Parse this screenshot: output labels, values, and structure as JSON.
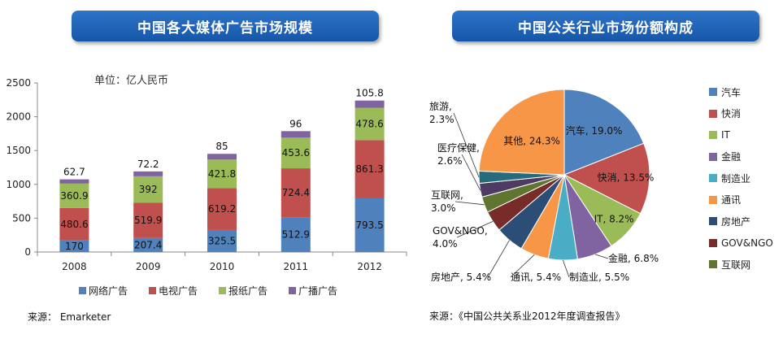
{
  "left_title": "中国各大媒体广告市场规模",
  "right_title": "中国公关行业市场份额构成",
  "left_source": "来源：   Emarketer",
  "right_source": "来源：《中国公共关系业2012年度调查报告》",
  "colors": {
    "banner": "#1c5fb0",
    "online": "#4f81bd",
    "tv": "#c0504d",
    "print": "#9bbb59",
    "radio": "#8064a2"
  },
  "chart_data": [
    {
      "type": "bar",
      "stacked": true,
      "title": "中国各大媒体广告市场规模",
      "unit_label": "单位：亿人民币",
      "categories": [
        "2008",
        "2009",
        "2010",
        "2011",
        "2012"
      ],
      "y_ticks": [
        "0",
        "500",
        "1000",
        "1500",
        "2000",
        "2500"
      ],
      "ylim": [
        0,
        2500
      ],
      "series": [
        {
          "name": "网络广告",
          "color": "#4f81bd",
          "values": [
            170,
            207.4,
            325.5,
            512.9,
            793.5
          ],
          "labels": [
            "170",
            "207.4",
            "325.5",
            "512.9",
            "793.5"
          ]
        },
        {
          "name": "电视广告",
          "color": "#c0504d",
          "values": [
            480.6,
            519.9,
            619.2,
            724.4,
            861.3
          ],
          "labels": [
            "480.6",
            "519.9",
            "619.2",
            "724.4",
            "861.3"
          ]
        },
        {
          "name": "报纸广告",
          "color": "#9bbb59",
          "values": [
            360.9,
            392,
            421.8,
            453.6,
            478.6
          ],
          "labels": [
            "360.9",
            "392",
            "421.8",
            "453.6",
            "478.6"
          ]
        },
        {
          "name": "广播广告",
          "color": "#8064a2",
          "values": [
            62.7,
            72.2,
            85,
            96,
            105.8
          ],
          "labels": [
            "62.7",
            "72.2",
            "85",
            "96",
            "105.8"
          ]
        }
      ],
      "legend_position": "bottom",
      "grid": false
    },
    {
      "type": "pie",
      "title": "中国公关行业市场份额构成",
      "slices": [
        {
          "name": "汽车",
          "value": 19.0,
          "label": "汽车, 19.0%",
          "color": "#4f81bd"
        },
        {
          "name": "快消",
          "value": 13.5,
          "label": "快消, 13.5%",
          "color": "#c0504d"
        },
        {
          "name": "IT",
          "value": 8.2,
          "label": "IT, 8.2%",
          "color": "#9bbb59"
        },
        {
          "name": "金融",
          "value": 6.8,
          "label": "金融, 6.8%",
          "color": "#8064a2"
        },
        {
          "name": "制造业",
          "value": 5.5,
          "label": "制造业, 5.5%",
          "color": "#4bacc6"
        },
        {
          "name": "通讯",
          "value": 5.4,
          "label": "通讯, 5.4%",
          "color": "#f79646"
        },
        {
          "name": "房地产",
          "value": 5.4,
          "label": "房地产, 5.4%",
          "color": "#2c4d75"
        },
        {
          "name": "GOV&NGO",
          "value": 4.0,
          "label": "GOV&NGO, 4.0%",
          "color": "#772c2a"
        },
        {
          "name": "互联网",
          "value": 3.0,
          "label": "互联网, 3.0%",
          "color": "#5f7530"
        },
        {
          "name": "医疗保健",
          "value": 2.6,
          "label": "医疗保健, 2.6%",
          "color": "#4d3b62"
        },
        {
          "name": "旅游",
          "value": 2.3,
          "label": "旅游, 2.3%",
          "color": "#276a7c"
        },
        {
          "name": "其他",
          "value": 24.3,
          "label": "其他, 24.3%",
          "color": "#f79646"
        }
      ],
      "legend": [
        "汽车",
        "快消",
        "IT",
        "金融",
        "制造业",
        "通讯",
        "房地产",
        "GOV&NGO",
        "互联网"
      ],
      "legend_position": "right"
    }
  ]
}
